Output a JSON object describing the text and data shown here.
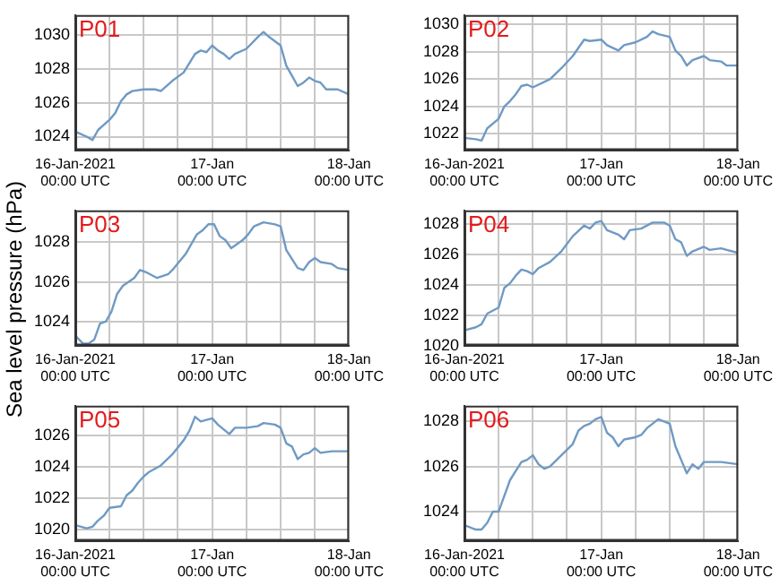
{
  "chart_data": [
    {
      "type": "line",
      "title": "P01",
      "x": [
        "2021-01-16T00:00",
        "2021-01-16T02:00",
        "2021-01-16T03:00",
        "2021-01-16T04:00",
        "2021-01-16T06:00",
        "2021-01-16T07:00",
        "2021-01-16T08:00",
        "2021-01-16T09:00",
        "2021-01-16T10:00",
        "2021-01-16T12:00",
        "2021-01-16T14:00",
        "2021-01-16T15:00",
        "2021-01-16T17:00",
        "2021-01-16T19:00",
        "2021-01-16T21:00",
        "2021-01-16T22:00",
        "2021-01-16T23:00",
        "2021-01-17T00:00",
        "2021-01-17T01:00",
        "2021-01-17T02:00",
        "2021-01-17T03:00",
        "2021-01-17T04:00",
        "2021-01-17T06:00",
        "2021-01-17T08:00",
        "2021-01-17T09:00",
        "2021-01-17T10:00",
        "2021-01-17T12:00",
        "2021-01-17T13:00",
        "2021-01-17T14:00",
        "2021-01-17T15:00",
        "2021-01-17T16:00",
        "2021-01-17T17:00",
        "2021-01-17T18:00",
        "2021-01-17T19:00",
        "2021-01-17T20:00",
        "2021-01-17T22:00",
        "2021-01-18T00:00"
      ],
      "series": [
        {
          "color": "#6f9ac4",
          "values": [
            1024.3,
            1024.0,
            1023.8,
            1024.4,
            1025.0,
            1025.4,
            1026.1,
            1026.5,
            1026.7,
            1026.8,
            1026.8,
            1026.7,
            1027.3,
            1027.8,
            1028.9,
            1029.1,
            1029.0,
            1029.4,
            1029.1,
            1028.9,
            1028.6,
            1028.9,
            1029.2,
            1029.9,
            1030.2,
            1029.9,
            1029.4,
            1028.2,
            1027.6,
            1027.0,
            1027.2,
            1027.5,
            1027.3,
            1027.2,
            1026.8,
            1026.8,
            1026.5
          ]
        }
      ],
      "xlim": [
        "2021-01-16T00:00",
        "2021-01-18T00:00"
      ],
      "xticks": [
        {
          "value": "2021-01-16T00:00",
          "label": "16-Jan-2021\n00:00 UTC"
        },
        {
          "value": "2021-01-16T06:00",
          "label": null
        },
        {
          "value": "2021-01-16T12:00",
          "label": null
        },
        {
          "value": "2021-01-16T18:00",
          "label": null
        },
        {
          "value": "2021-01-17T00:00",
          "label": "17-Jan\n00:00 UTC"
        },
        {
          "value": "2021-01-17T06:00",
          "label": null
        },
        {
          "value": "2021-01-17T12:00",
          "label": null
        },
        {
          "value": "2021-01-17T18:00",
          "label": null
        },
        {
          "value": "2021-01-18T00:00",
          "label": "18-Jan\n00:00 UTC"
        }
      ],
      "ylim": [
        1023.2,
        1031.2
      ],
      "yticks": [
        1024,
        1026,
        1028,
        1030
      ],
      "grid": true,
      "legend": false,
      "marker": "none"
    },
    {
      "type": "line",
      "title": "P02",
      "x": [
        "2021-01-16T00:00",
        "2021-01-16T02:00",
        "2021-01-16T03:00",
        "2021-01-16T04:00",
        "2021-01-16T06:00",
        "2021-01-16T07:00",
        "2021-01-16T08:00",
        "2021-01-16T09:00",
        "2021-01-16T10:00",
        "2021-01-16T11:00",
        "2021-01-16T12:00",
        "2021-01-16T15:00",
        "2021-01-16T17:00",
        "2021-01-16T19:00",
        "2021-01-16T21:00",
        "2021-01-16T22:00",
        "2021-01-17T00:00",
        "2021-01-17T01:00",
        "2021-01-17T03:00",
        "2021-01-17T04:00",
        "2021-01-17T06:00",
        "2021-01-17T08:00",
        "2021-01-17T09:00",
        "2021-01-17T10:00",
        "2021-01-17T12:00",
        "2021-01-17T13:00",
        "2021-01-17T14:00",
        "2021-01-17T15:00",
        "2021-01-17T16:00",
        "2021-01-17T18:00",
        "2021-01-17T19:00",
        "2021-01-17T21:00",
        "2021-01-17T22:00",
        "2021-01-18T00:00"
      ],
      "series": [
        {
          "color": "#6f9ac4",
          "values": [
            1021.7,
            1021.6,
            1021.5,
            1022.4,
            1023.1,
            1024.0,
            1024.4,
            1024.9,
            1025.5,
            1025.6,
            1025.4,
            1026.0,
            1026.8,
            1027.7,
            1028.9,
            1028.8,
            1028.9,
            1028.5,
            1028.1,
            1028.5,
            1028.7,
            1029.1,
            1029.5,
            1029.3,
            1029.1,
            1028.1,
            1027.7,
            1027.0,
            1027.4,
            1027.7,
            1027.4,
            1027.3,
            1027.0,
            1027.0
          ]
        }
      ],
      "xlim": [
        "2021-01-16T00:00",
        "2021-01-18T00:00"
      ],
      "xticks": [
        {
          "value": "2021-01-16T00:00",
          "label": "16-Jan-2021\n00:00 UTC"
        },
        {
          "value": "2021-01-16T06:00",
          "label": null
        },
        {
          "value": "2021-01-16T12:00",
          "label": null
        },
        {
          "value": "2021-01-16T18:00",
          "label": null
        },
        {
          "value": "2021-01-17T00:00",
          "label": "17-Jan\n00:00 UTC"
        },
        {
          "value": "2021-01-17T06:00",
          "label": null
        },
        {
          "value": "2021-01-17T12:00",
          "label": null
        },
        {
          "value": "2021-01-17T18:00",
          "label": null
        },
        {
          "value": "2021-01-18T00:00",
          "label": "18-Jan\n00:00 UTC"
        }
      ],
      "ylim": [
        1020.8,
        1030.7
      ],
      "yticks": [
        1022,
        1024,
        1026,
        1028,
        1030
      ],
      "grid": true,
      "legend": false,
      "marker": "none"
    },
    {
      "type": "line",
      "title": "P03",
      "ylabel": "Sea level pressure (hPa)",
      "x": [
        "2021-01-16T00:00",
        "2021-01-16T01:20",
        "2021-01-16T02:20",
        "2021-01-16T03:20",
        "2021-01-16T04:20",
        "2021-01-16T05:20",
        "2021-01-16T06:20",
        "2021-01-16T07:20",
        "2021-01-16T08:20",
        "2021-01-16T10:20",
        "2021-01-16T11:20",
        "2021-01-16T12:20",
        "2021-01-16T14:20",
        "2021-01-16T16:20",
        "2021-01-16T17:20",
        "2021-01-16T19:20",
        "2021-01-16T20:20",
        "2021-01-16T21:20",
        "2021-01-16T22:20",
        "2021-01-16T23:20",
        "2021-01-17T00:20",
        "2021-01-17T01:20",
        "2021-01-17T02:20",
        "2021-01-17T03:20",
        "2021-01-17T04:20",
        "2021-01-17T05:20",
        "2021-01-17T06:20",
        "2021-01-17T07:20",
        "2021-01-17T09:00",
        "2021-01-17T11:00",
        "2021-01-17T12:00",
        "2021-01-17T13:00",
        "2021-01-17T15:00",
        "2021-01-17T16:00",
        "2021-01-17T17:00",
        "2021-01-17T18:00",
        "2021-01-17T19:00",
        "2021-01-17T21:00",
        "2021-01-17T22:00",
        "2021-01-18T00:00"
      ],
      "series": [
        {
          "color": "#6f9ac4",
          "values": [
            1023.3,
            1022.9,
            1022.9,
            1023.1,
            1023.9,
            1024.0,
            1024.5,
            1025.4,
            1025.8,
            1026.2,
            1026.6,
            1026.5,
            1026.2,
            1026.4,
            1026.7,
            1027.4,
            1027.9,
            1028.4,
            1028.6,
            1028.9,
            1028.9,
            1028.3,
            1028.1,
            1027.7,
            1027.9,
            1028.1,
            1028.4,
            1028.8,
            1029.0,
            1028.9,
            1028.8,
            1027.6,
            1026.7,
            1026.6,
            1027.0,
            1027.2,
            1027.0,
            1026.9,
            1026.7,
            1026.6
          ]
        }
      ],
      "xlim": [
        "2021-01-16T00:00",
        "2021-01-18T00:00"
      ],
      "xticks": [
        {
          "value": "2021-01-16T00:00",
          "label": "16-Jan-2021\n00:00 UTC"
        },
        {
          "value": "2021-01-16T06:00",
          "label": null
        },
        {
          "value": "2021-01-16T12:00",
          "label": null
        },
        {
          "value": "2021-01-16T18:00",
          "label": null
        },
        {
          "value": "2021-01-17T00:00",
          "label": "17-Jan\n00:00 UTC"
        },
        {
          "value": "2021-01-17T06:00",
          "label": null
        },
        {
          "value": "2021-01-17T12:00",
          "label": null
        },
        {
          "value": "2021-01-17T18:00",
          "label": null
        },
        {
          "value": "2021-01-18T00:00",
          "label": "18-Jan\n00:00 UTC"
        }
      ],
      "ylim": [
        1022.8,
        1029.6
      ],
      "yticks": [
        1024,
        1026,
        1028
      ],
      "grid": true,
      "legend": false,
      "marker": "none"
    },
    {
      "type": "line",
      "title": "P04",
      "x": [
        "2021-01-16T00:00",
        "2021-01-16T02:00",
        "2021-01-16T03:00",
        "2021-01-16T04:00",
        "2021-01-16T06:00",
        "2021-01-16T07:00",
        "2021-01-16T08:00",
        "2021-01-16T09:00",
        "2021-01-16T10:00",
        "2021-01-16T11:00",
        "2021-01-16T12:00",
        "2021-01-16T13:00",
        "2021-01-16T15:00",
        "2021-01-16T17:00",
        "2021-01-16T19:00",
        "2021-01-16T21:00",
        "2021-01-16T22:00",
        "2021-01-16T23:00",
        "2021-01-17T00:00",
        "2021-01-17T01:00",
        "2021-01-17T03:00",
        "2021-01-17T04:00",
        "2021-01-17T05:00",
        "2021-01-17T07:00",
        "2021-01-17T09:00",
        "2021-01-17T11:00",
        "2021-01-17T12:00",
        "2021-01-17T13:00",
        "2021-01-17T14:00",
        "2021-01-17T15:00",
        "2021-01-17T16:00",
        "2021-01-17T18:00",
        "2021-01-17T19:00",
        "2021-01-17T21:00",
        "2021-01-17T22:00",
        "2021-01-18T00:00"
      ],
      "series": [
        {
          "color": "#6f9ac4",
          "values": [
            1021.0,
            1021.2,
            1021.4,
            1022.1,
            1022.5,
            1023.8,
            1024.1,
            1024.6,
            1025.0,
            1024.9,
            1024.7,
            1025.1,
            1025.5,
            1026.2,
            1027.2,
            1027.9,
            1027.7,
            1028.1,
            1028.2,
            1027.6,
            1027.3,
            1027.0,
            1027.6,
            1027.7,
            1028.1,
            1028.1,
            1027.9,
            1027.0,
            1026.8,
            1025.9,
            1026.2,
            1026.5,
            1026.3,
            1026.4,
            1026.3,
            1026.1
          ]
        }
      ],
      "xlim": [
        "2021-01-16T00:00",
        "2021-01-18T00:00"
      ],
      "xticks": [
        {
          "value": "2021-01-16T00:00",
          "label": "16-Jan-2021\n00:00 UTC"
        },
        {
          "value": "2021-01-16T06:00",
          "label": null
        },
        {
          "value": "2021-01-16T12:00",
          "label": null
        },
        {
          "value": "2021-01-16T18:00",
          "label": null
        },
        {
          "value": "2021-01-17T00:00",
          "label": "17-Jan\n00:00 UTC"
        },
        {
          "value": "2021-01-17T06:00",
          "label": null
        },
        {
          "value": "2021-01-17T12:00",
          "label": null
        },
        {
          "value": "2021-01-17T18:00",
          "label": null
        },
        {
          "value": "2021-01-18T00:00",
          "label": "18-Jan\n00:00 UTC"
        }
      ],
      "ylim": [
        1020,
        1028.9
      ],
      "yticks": [
        1020,
        1022,
        1024,
        1026,
        1028
      ],
      "grid": true,
      "legend": false,
      "marker": "none"
    },
    {
      "type": "line",
      "title": "P05",
      "x": [
        "2021-01-16T00:00",
        "2021-01-16T02:00",
        "2021-01-16T03:00",
        "2021-01-16T04:00",
        "2021-01-16T05:00",
        "2021-01-16T06:00",
        "2021-01-16T08:00",
        "2021-01-16T09:00",
        "2021-01-16T10:00",
        "2021-01-16T11:00",
        "2021-01-16T12:00",
        "2021-01-16T13:00",
        "2021-01-16T15:00",
        "2021-01-16T17:00",
        "2021-01-16T19:00",
        "2021-01-16T20:00",
        "2021-01-16T21:00",
        "2021-01-16T22:00",
        "2021-01-17T00:00",
        "2021-01-17T01:00",
        "2021-01-17T02:00",
        "2021-01-17T03:00",
        "2021-01-17T04:00",
        "2021-01-17T06:00",
        "2021-01-17T08:00",
        "2021-01-17T09:00",
        "2021-01-17T11:00",
        "2021-01-17T12:00",
        "2021-01-17T13:00",
        "2021-01-17T14:00",
        "2021-01-17T15:00",
        "2021-01-17T16:00",
        "2021-01-17T17:00",
        "2021-01-17T18:00",
        "2021-01-17T19:00",
        "2021-01-17T21:00",
        "2021-01-18T00:00"
      ],
      "series": [
        {
          "color": "#6f9ac4",
          "values": [
            1020.3,
            1020.1,
            1020.2,
            1020.6,
            1020.9,
            1021.4,
            1021.5,
            1022.2,
            1022.5,
            1023.0,
            1023.4,
            1023.7,
            1024.1,
            1024.8,
            1025.7,
            1026.3,
            1027.2,
            1026.9,
            1027.1,
            1026.7,
            1026.4,
            1026.1,
            1026.5,
            1026.5,
            1026.6,
            1026.8,
            1026.7,
            1026.5,
            1025.5,
            1025.3,
            1024.5,
            1024.8,
            1024.9,
            1025.2,
            1024.9,
            1025.0,
            1025.0
          ]
        }
      ],
      "xlim": [
        "2021-01-16T00:00",
        "2021-01-18T00:00"
      ],
      "xticks": [
        {
          "value": "2021-01-16T00:00",
          "label": "16-Jan-2021\n00:00 UTC"
        },
        {
          "value": "2021-01-16T06:00",
          "label": null
        },
        {
          "value": "2021-01-16T12:00",
          "label": null
        },
        {
          "value": "2021-01-16T18:00",
          "label": null
        },
        {
          "value": "2021-01-17T00:00",
          "label": "17-Jan\n00:00 UTC"
        },
        {
          "value": "2021-01-17T06:00",
          "label": null
        },
        {
          "value": "2021-01-17T12:00",
          "label": null
        },
        {
          "value": "2021-01-17T18:00",
          "label": null
        },
        {
          "value": "2021-01-18T00:00",
          "label": "18-Jan\n00:00 UTC"
        }
      ],
      "ylim": [
        1019.3,
        1027.9
      ],
      "yticks": [
        1020,
        1022,
        1024,
        1026
      ],
      "grid": true,
      "legend": false,
      "marker": "none"
    },
    {
      "type": "line",
      "title": "P06",
      "x": [
        "2021-01-16T00:00",
        "2021-01-16T02:00",
        "2021-01-16T03:00",
        "2021-01-16T04:00",
        "2021-01-16T05:00",
        "2021-01-16T06:00",
        "2021-01-16T07:00",
        "2021-01-16T08:00",
        "2021-01-16T09:00",
        "2021-01-16T10:00",
        "2021-01-16T11:00",
        "2021-01-16T12:00",
        "2021-01-16T13:00",
        "2021-01-16T14:00",
        "2021-01-16T15:00",
        "2021-01-16T17:00",
        "2021-01-16T19:00",
        "2021-01-16T20:00",
        "2021-01-16T21:00",
        "2021-01-16T22:00",
        "2021-01-16T23:00",
        "2021-01-17T00:00",
        "2021-01-17T01:00",
        "2021-01-17T02:00",
        "2021-01-17T03:00",
        "2021-01-17T04:00",
        "2021-01-17T06:00",
        "2021-01-17T07:00",
        "2021-01-17T08:00",
        "2021-01-17T10:00",
        "2021-01-17T12:00",
        "2021-01-17T13:00",
        "2021-01-17T14:00",
        "2021-01-17T15:00",
        "2021-01-17T16:00",
        "2021-01-17T17:00",
        "2021-01-17T18:00",
        "2021-01-17T19:00",
        "2021-01-17T21:00",
        "2021-01-18T00:00"
      ],
      "series": [
        {
          "color": "#6f9ac4",
          "values": [
            1023.4,
            1023.2,
            1023.2,
            1023.5,
            1024.0,
            1024.0,
            1024.7,
            1025.4,
            1025.8,
            1026.2,
            1026.3,
            1026.5,
            1026.1,
            1025.9,
            1026.0,
            1026.5,
            1027.0,
            1027.6,
            1027.8,
            1027.9,
            1028.1,
            1028.2,
            1027.5,
            1027.3,
            1026.9,
            1027.2,
            1027.3,
            1027.4,
            1027.7,
            1028.1,
            1027.9,
            1026.9,
            1026.3,
            1025.7,
            1026.1,
            1025.9,
            1026.2,
            1026.2,
            1026.2,
            1026.1
          ]
        }
      ],
      "xlim": [
        "2021-01-16T00:00",
        "2021-01-18T00:00"
      ],
      "xticks": [
        {
          "value": "2021-01-16T00:00",
          "label": "16-Jan-2021\n00:00 UTC"
        },
        {
          "value": "2021-01-16T06:00",
          "label": null
        },
        {
          "value": "2021-01-16T12:00",
          "label": null
        },
        {
          "value": "2021-01-16T18:00",
          "label": null
        },
        {
          "value": "2021-01-17T00:00",
          "label": "17-Jan\n00:00 UTC"
        },
        {
          "value": "2021-01-17T06:00",
          "label": null
        },
        {
          "value": "2021-01-17T12:00",
          "label": null
        },
        {
          "value": "2021-01-17T18:00",
          "label": null
        },
        {
          "value": "2021-01-18T00:00",
          "label": "18-Jan\n00:00 UTC"
        }
      ],
      "ylim": [
        1022.7,
        1028.7
      ],
      "yticks": [
        1024,
        1026,
        1028
      ],
      "grid": true,
      "legend": false,
      "marker": "none"
    }
  ]
}
